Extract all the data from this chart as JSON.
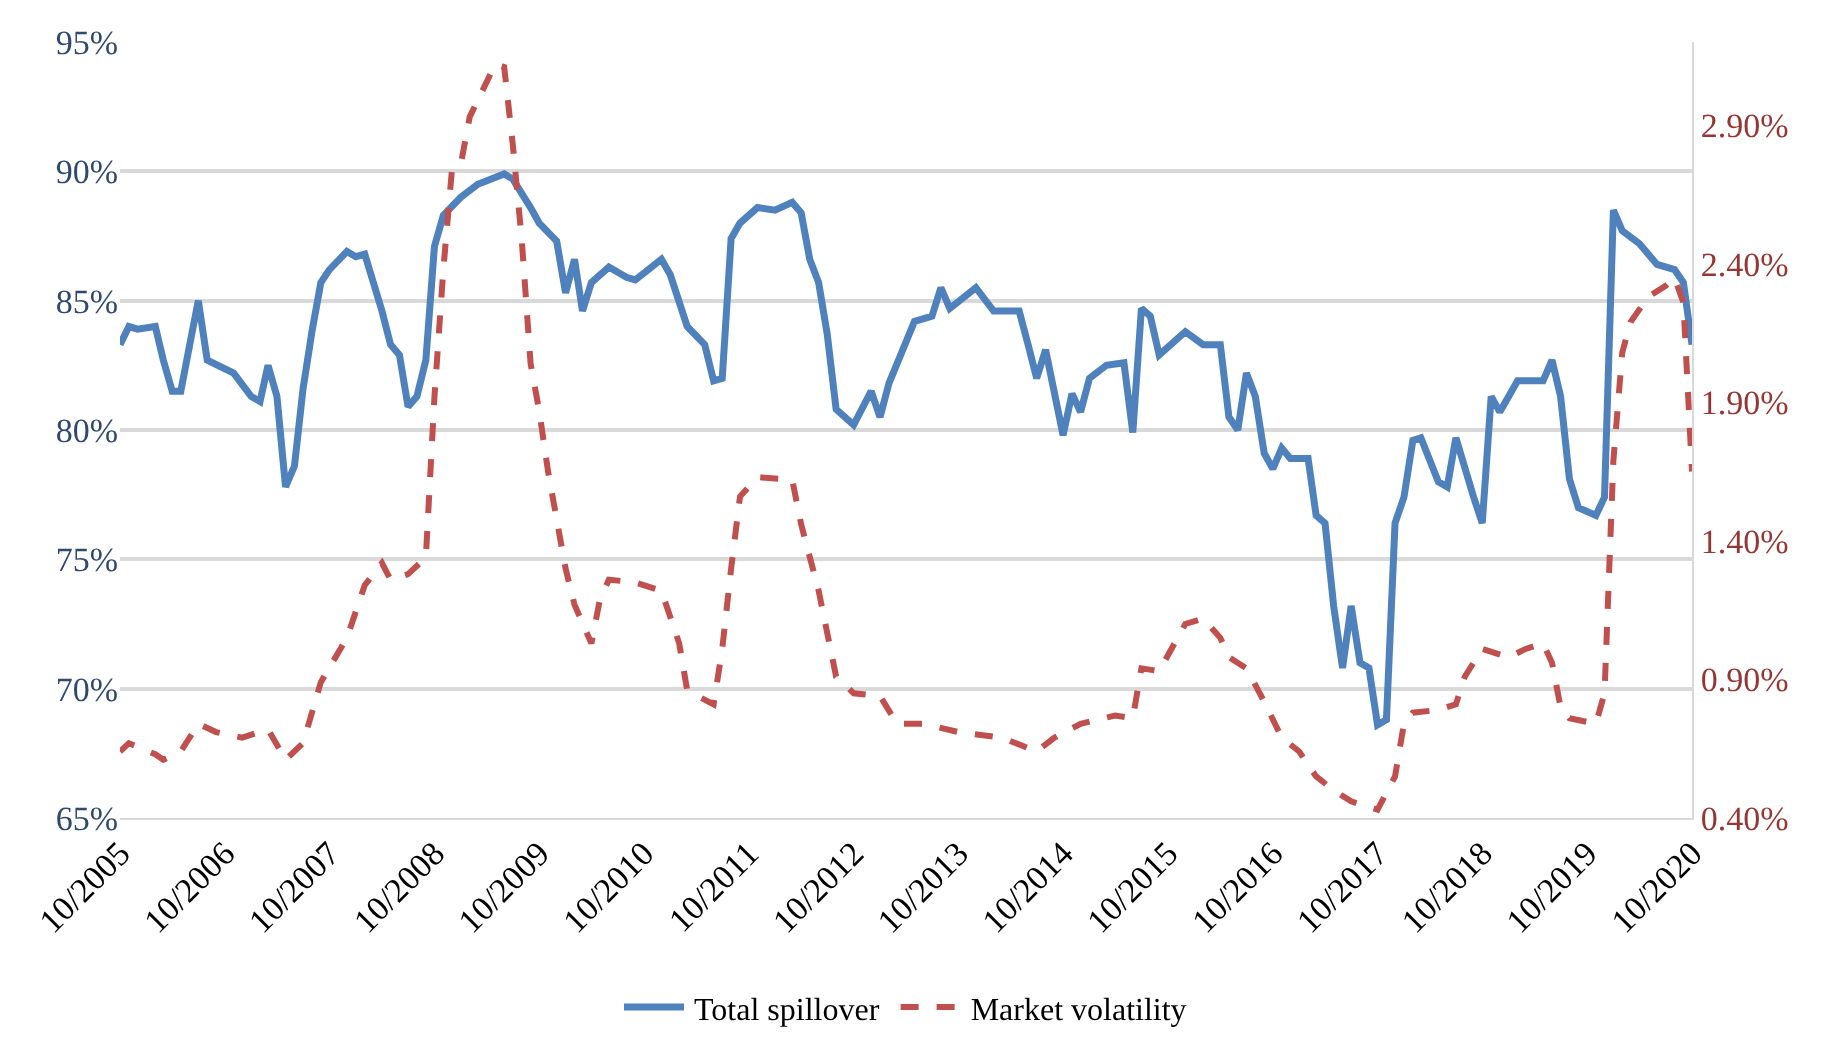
{
  "chart_data": {
    "type": "line",
    "xlim": [
      "2005-10",
      "2020-10"
    ],
    "xticks": [
      {
        "value": "2005-10",
        "label": "10/2005"
      },
      {
        "value": "2006-10",
        "label": "10/2006"
      },
      {
        "value": "2007-10",
        "label": "10/2007"
      },
      {
        "value": "2008-10",
        "label": "10/2008"
      },
      {
        "value": "2009-10",
        "label": "10/2009"
      },
      {
        "value": "2010-10",
        "label": "10/2010"
      },
      {
        "value": "2011-10",
        "label": "10/2011"
      },
      {
        "value": "2012-10",
        "label": "10/2012"
      },
      {
        "value": "2013-10",
        "label": "10/2013"
      },
      {
        "value": "2014-10",
        "label": "10/2014"
      },
      {
        "value": "2015-10",
        "label": "10/2015"
      },
      {
        "value": "2016-10",
        "label": "10/2016"
      },
      {
        "value": "2017-10",
        "label": "10/2017"
      },
      {
        "value": "2018-10",
        "label": "10/2018"
      },
      {
        "value": "2019-10",
        "label": "10/2019"
      },
      {
        "value": "2020-10",
        "label": "10/2020"
      }
    ],
    "ylim": [
      65,
      95
    ],
    "yticks": [
      {
        "value": 65,
        "label": "65%"
      },
      {
        "value": 70,
        "label": "70%"
      },
      {
        "value": 75,
        "label": "75%"
      },
      {
        "value": 80,
        "label": "80%"
      },
      {
        "value": 85,
        "label": "85%"
      },
      {
        "value": 90,
        "label": "90%"
      },
      {
        "value": 95,
        "label": "95%"
      }
    ],
    "y2lim": [
      0.4,
      3.2
    ],
    "y2ticks": [
      {
        "value": 0.4,
        "label": "0.40%"
      },
      {
        "value": 0.9,
        "label": "0.90%"
      },
      {
        "value": 1.4,
        "label": "1.40%"
      },
      {
        "value": 1.9,
        "label": "1.90%"
      },
      {
        "value": 2.4,
        "label": "2.40%"
      },
      {
        "value": 2.9,
        "label": "2.90%"
      }
    ],
    "grid": "y",
    "legend": "bottom",
    "series": [
      {
        "name": "Total spillover",
        "color": "#4f81bd",
        "line_style": "solid",
        "x": [
          "2005-10",
          "2005-11",
          "2005-12",
          "2006-02",
          "2006-03",
          "2006-04",
          "2006-05",
          "2006-06",
          "2006-07",
          "2006-08",
          "2006-11",
          "2007-01",
          "2007-02",
          "2007-03",
          "2007-04",
          "2007-05",
          "2007-06",
          "2007-07",
          "2007-08",
          "2007-09",
          "2007-10",
          "2007-12",
          "2008-01",
          "2008-02",
          "2008-04",
          "2008-05",
          "2008-06",
          "2008-07",
          "2008-08",
          "2008-09",
          "2008-10",
          "2008-11",
          "2009-01",
          "2009-03",
          "2009-06",
          "2009-07",
          "2009-09",
          "2009-10",
          "2009-12",
          "2010-01",
          "2010-02",
          "2010-03",
          "2010-04",
          "2010-06",
          "2010-08",
          "2010-09",
          "2010-12",
          "2011-01",
          "2011-03",
          "2011-05",
          "2011-06",
          "2011-07",
          "2011-08",
          "2011-09",
          "2011-11",
          "2012-01",
          "2012-03",
          "2012-04",
          "2012-05",
          "2012-06",
          "2012-07",
          "2012-08",
          "2012-10",
          "2012-12",
          "2013-01",
          "2013-02",
          "2013-05",
          "2013-07",
          "2013-08",
          "2013-09",
          "2013-12",
          "2014-02",
          "2014-05",
          "2014-06",
          "2014-07",
          "2014-08",
          "2014-10",
          "2014-11",
          "2014-12",
          "2015-01",
          "2015-03",
          "2015-05",
          "2015-06",
          "2015-07",
          "2015-08",
          "2015-09",
          "2015-12",
          "2016-02",
          "2016-04",
          "2016-05",
          "2016-06",
          "2016-07",
          "2016-08",
          "2016-09",
          "2016-10",
          "2016-11",
          "2016-12",
          "2017-02",
          "2017-03",
          "2017-04",
          "2017-05",
          "2017-06",
          "2017-07",
          "2017-08",
          "2017-09",
          "2017-10",
          "2017-11",
          "2017-12",
          "2018-01",
          "2018-02",
          "2018-03",
          "2018-05",
          "2018-06",
          "2018-07",
          "2018-09",
          "2018-10",
          "2018-11",
          "2018-12",
          "2019-02",
          "2019-05",
          "2019-06",
          "2019-07",
          "2019-08",
          "2019-09",
          "2019-11",
          "2019-12",
          "2020-01",
          "2020-02",
          "2020-04",
          "2020-06",
          "2020-08",
          "2020-09",
          "2020-10"
        ],
        "values": [
          83.3,
          84.0,
          83.9,
          84.0,
          82.7,
          81.5,
          81.5,
          83.3,
          85.0,
          82.7,
          82.2,
          81.3,
          81.1,
          82.5,
          81.3,
          77.8,
          78.6,
          81.6,
          83.8,
          85.7,
          86.2,
          86.9,
          86.7,
          86.8,
          84.6,
          83.3,
          82.9,
          80.9,
          81.3,
          82.7,
          87.1,
          88.3,
          89.0,
          89.5,
          89.9,
          89.7,
          88.6,
          88.0,
          87.3,
          85.3,
          86.6,
          84.6,
          85.7,
          86.3,
          85.9,
          85.8,
          86.6,
          86.0,
          84.0,
          83.3,
          81.9,
          82.0,
          87.4,
          88.0,
          88.6,
          88.5,
          88.8,
          88.4,
          86.6,
          85.7,
          83.7,
          80.8,
          80.2,
          81.5,
          80.5,
          81.8,
          84.2,
          84.4,
          85.5,
          84.7,
          85.5,
          84.6,
          84.6,
          83.3,
          82.0,
          83.1,
          79.8,
          81.4,
          80.7,
          82.0,
          82.5,
          82.6,
          79.9,
          84.7,
          84.4,
          82.9,
          83.8,
          83.3,
          83.3,
          80.5,
          80.0,
          82.2,
          81.3,
          79.1,
          78.5,
          79.3,
          78.9,
          78.9,
          76.7,
          76.4,
          73.2,
          70.8,
          73.2,
          71.0,
          70.8,
          68.6,
          68.8,
          76.4,
          77.4,
          79.6,
          79.7,
          78.0,
          77.8,
          79.7,
          77.4,
          76.4,
          81.3,
          80.7,
          81.9,
          81.9,
          82.7,
          81.3,
          78.1,
          77.0,
          76.7,
          77.4,
          88.5,
          87.7,
          87.2,
          86.4,
          86.2,
          85.7,
          83.3
        ]
      },
      {
        "name": "Market volatility",
        "color": "#c0504d",
        "line_style": "dashed",
        "axis": "y2",
        "x": [
          "2005-10",
          "2005-11",
          "2006-02",
          "2006-03",
          "2006-05",
          "2006-07",
          "2006-09",
          "2006-12",
          "2007-03",
          "2007-05",
          "2007-07",
          "2007-09",
          "2007-12",
          "2008-02",
          "2008-04",
          "2008-05",
          "2008-07",
          "2008-09",
          "2008-10",
          "2008-11",
          "2008-12",
          "2009-01",
          "2009-02",
          "2009-05",
          "2009-06",
          "2009-07",
          "2009-08",
          "2009-09",
          "2009-10",
          "2009-11",
          "2010-01",
          "2010-02",
          "2010-04",
          "2010-05",
          "2010-06",
          "2010-09",
          "2010-12",
          "2011-02",
          "2011-03",
          "2011-06",
          "2011-07",
          "2011-08",
          "2011-09",
          "2011-11",
          "2012-03",
          "2012-04",
          "2012-06",
          "2012-08",
          "2012-10",
          "2013-01",
          "2013-03",
          "2013-06",
          "2013-10",
          "2014-03",
          "2014-07",
          "2014-09",
          "2014-12",
          "2015-04",
          "2015-06",
          "2015-07",
          "2015-09",
          "2015-12",
          "2016-02",
          "2016-04",
          "2016-05",
          "2016-07",
          "2016-09",
          "2016-11",
          "2017-01",
          "2017-03",
          "2017-05",
          "2017-07",
          "2017-10",
          "2017-12",
          "2018-01",
          "2018-02",
          "2018-05",
          "2018-07",
          "2018-08",
          "2018-10",
          "2019-01",
          "2019-03",
          "2019-05",
          "2019-06",
          "2019-07",
          "2019-08",
          "2019-11",
          "2019-12",
          "2020-01",
          "2020-02",
          "2020-03",
          "2020-05",
          "2020-07",
          "2020-08",
          "2020-09",
          "2020-10"
        ],
        "values": [
          0.64,
          0.67,
          0.63,
          0.61,
          0.64,
          0.74,
          0.71,
          0.69,
          0.72,
          0.61,
          0.67,
          0.89,
          1.05,
          1.24,
          1.32,
          1.26,
          1.28,
          1.34,
          1.92,
          2.38,
          2.74,
          2.76,
          2.93,
          3.12,
          3.11,
          2.83,
          2.49,
          2.04,
          1.87,
          1.65,
          1.3,
          1.17,
          1.03,
          1.19,
          1.26,
          1.25,
          1.22,
          1.03,
          0.86,
          0.81,
          1.01,
          1.3,
          1.56,
          1.63,
          1.62,
          1.46,
          1.22,
          0.91,
          0.85,
          0.84,
          0.74,
          0.74,
          0.71,
          0.69,
          0.64,
          0.69,
          0.74,
          0.77,
          0.76,
          0.94,
          0.93,
          1.1,
          1.12,
          1.05,
          0.98,
          0.94,
          0.82,
          0.69,
          0.64,
          0.55,
          0.5,
          0.46,
          0.43,
          0.55,
          0.74,
          0.78,
          0.79,
          0.81,
          0.91,
          1.01,
          0.98,
          1.01,
          1.03,
          0.96,
          0.8,
          0.76,
          0.74,
          0.85,
          1.69,
          2.08,
          2.19,
          2.28,
          2.32,
          2.35,
          2.26,
          1.65
        ]
      }
    ]
  }
}
